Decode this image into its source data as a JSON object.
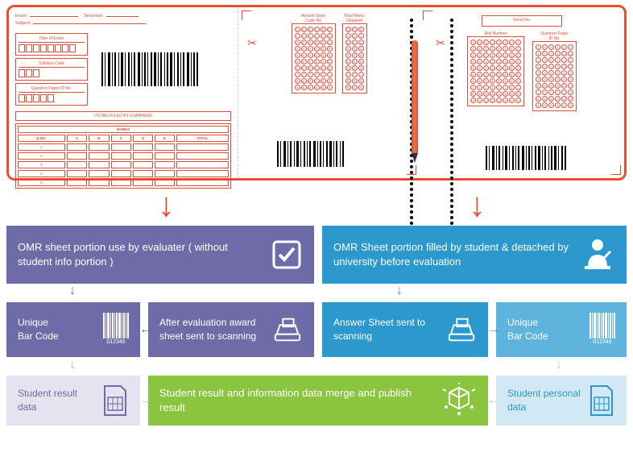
{
  "omr": {
    "exam": "Exam",
    "semester": "Semester",
    "subject": "Subject",
    "date_of_exam": "Date of Exam",
    "syllabus_code": "Syllabus Code",
    "question_paper_id": "Question Paper ID No.",
    "filled_by_examiner": "(TO BE FILLED BY EXAMINER)",
    "marks": "MARKS",
    "cols": [
      "Q.NO.",
      "A",
      "B",
      "C",
      "D",
      "E",
      "TOTAL"
    ],
    "rows": [
      "1",
      "2",
      "3",
      "4",
      "5"
    ],
    "answer_book": "Answer Book\nCode No",
    "total_marks": "Total Marks\nObtained",
    "serial_no": "Serial No.",
    "roll_number": "Roll Number",
    "qp_id": "Question Paper\nID No.",
    "barcode_label": "012345"
  },
  "flow": {
    "evaluator": "OMR sheet portion use by evaluater ( without student info portion )",
    "student": "OMR Sheet portion filled by student & detached by university before evaluation",
    "unique_bc": "Unique\nBar Code",
    "after_eval": "After evaluation award sheet sent to scanning",
    "answer_sheet": "Answer Sheet sent to scanning",
    "result_data": "Student result data",
    "merge": "Student result  and information data merge and publish result",
    "personal_data": "Student personal data",
    "bc_num": "012345"
  },
  "colors": {
    "purple": "#6e6ba8",
    "blue": "#2b98ce",
    "lightblue": "#5eb4dd",
    "paleblue": "#d2e9f5",
    "palepurple": "#e4e3ef",
    "green": "#8bc53f",
    "omr_red": "#d94f3e",
    "border_red": "#e94f2e"
  },
  "arrows": {
    "down": "↓",
    "left": "←",
    "right": "→"
  }
}
